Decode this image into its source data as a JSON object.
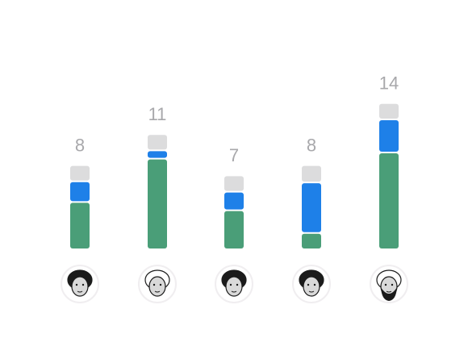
{
  "chart_data": {
    "type": "bar",
    "stacked": true,
    "categories": [
      null,
      null,
      null,
      null,
      null
    ],
    "series": [
      {
        "color": "#4a9e78",
        "values": [
          4.5,
          8.7,
          3.7,
          1.5,
          9.3
        ]
      },
      {
        "color": "#1e80e8",
        "values": [
          2,
          0.8,
          1.8,
          4.9,
          3.2
        ]
      },
      {
        "color": "#dcdcdd",
        "values": [
          1.5,
          1.5,
          1.5,
          1.6,
          1.5
        ]
      }
    ],
    "totals": [
      8,
      11,
      7,
      8,
      14
    ]
  }
}
